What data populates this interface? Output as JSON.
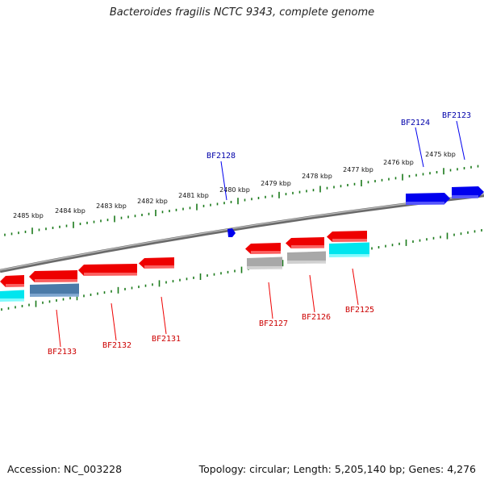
{
  "title": "Bacteroides fragilis NCTC 9343, complete genome",
  "footer": {
    "accession": "Accession: NC_003228",
    "topology": "Topology: circular; Length: 5,205,140 bp; Genes: 4,276"
  },
  "colors": {
    "backbone": "#808080",
    "tick": "#1a7a1a",
    "forward_gene": "#0000ee",
    "reverse_gene": "#ee0000",
    "forward_label": "#0000aa",
    "reverse_label": "#cc0000",
    "cyan_feature": "#00e5ee",
    "gray_feature": "#a8a8a8",
    "steelblue_feature": "#4a7aa8"
  },
  "scale_labels": [
    "2475 kbp",
    "2476 kbp",
    "2477 kbp",
    "2478 kbp",
    "2479 kbp",
    "2480 kbp",
    "2481 kbp",
    "2482 kbp",
    "2483 kbp",
    "2484 kbp",
    "2485 kbp"
  ],
  "gene_labels": {
    "forward": [
      "BF2123",
      "BF2124",
      "BF2128"
    ],
    "reverse": [
      "BF2125",
      "BF2126",
      "BF2127",
      "BF2131",
      "BF2132",
      "BF2133"
    ]
  }
}
